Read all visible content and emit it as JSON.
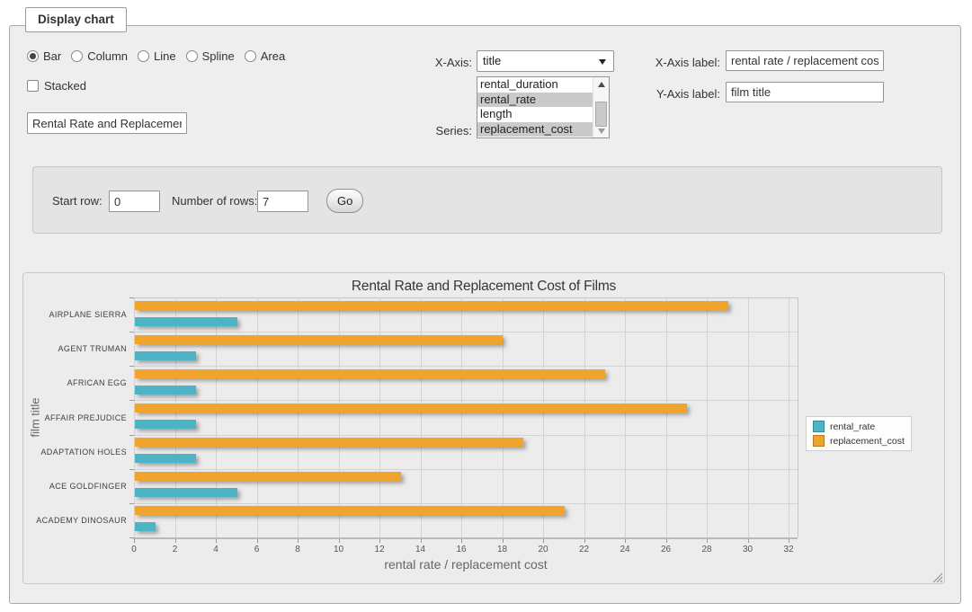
{
  "panel": {
    "legend": "Display chart"
  },
  "controls": {
    "chart_types": [
      {
        "label": "Bar",
        "selected": true
      },
      {
        "label": "Column",
        "selected": false
      },
      {
        "label": "Line",
        "selected": false
      },
      {
        "label": "Spline",
        "selected": false
      },
      {
        "label": "Area",
        "selected": false
      }
    ],
    "stacked": {
      "label": "Stacked",
      "checked": false
    },
    "chart_title_input": {
      "value": "Rental Rate and Replacemer"
    },
    "x_axis": {
      "label": "X-Axis:",
      "selected_option": "title"
    },
    "series_select": {
      "label": "Series:",
      "options": [
        {
          "label": "rental_duration",
          "selected": false
        },
        {
          "label": "rental_rate",
          "selected": true
        },
        {
          "label": "length",
          "selected": false
        },
        {
          "label": "replacement_cost",
          "selected": true
        }
      ]
    },
    "x_axis_label_input": {
      "label": "X-Axis label:",
      "value": "rental rate / replacement cost"
    },
    "y_axis_label_input": {
      "label": "Y-Axis label:",
      "value": "film title"
    }
  },
  "row_controls": {
    "start_row": {
      "label": "Start row:",
      "value": "0"
    },
    "number_of_rows": {
      "label": "Number of rows:",
      "value": "7"
    },
    "go_button": "Go"
  },
  "chart_data": {
    "type": "bar",
    "orientation": "horizontal",
    "title": "Rental Rate and Replacement Cost of Films",
    "xlabel": "rental rate / replacement cost",
    "ylabel": "film title",
    "categories": [
      "AIRPLANE SIERRA",
      "AGENT TRUMAN",
      "AFRICAN EGG",
      "AFFAIR PREJUDICE",
      "ADAPTATION HOLES",
      "ACE GOLDFINGER",
      "ACADEMY DINOSAUR"
    ],
    "series": [
      {
        "name": "rental_rate",
        "color": "#4DB4C6",
        "values": [
          4.99,
          2.99,
          2.99,
          2.99,
          2.99,
          4.99,
          0.99
        ]
      },
      {
        "name": "replacement_cost",
        "color": "#F0A42E",
        "values": [
          28.99,
          17.99,
          22.99,
          26.99,
          18.99,
          12.99,
          20.99
        ]
      }
    ],
    "xlim": [
      0,
      32
    ],
    "xticks": [
      0,
      2,
      4,
      6,
      8,
      10,
      12,
      14,
      16,
      18,
      20,
      22,
      24,
      26,
      28,
      30,
      32
    ],
    "legend_position": "right",
    "grid": true
  }
}
